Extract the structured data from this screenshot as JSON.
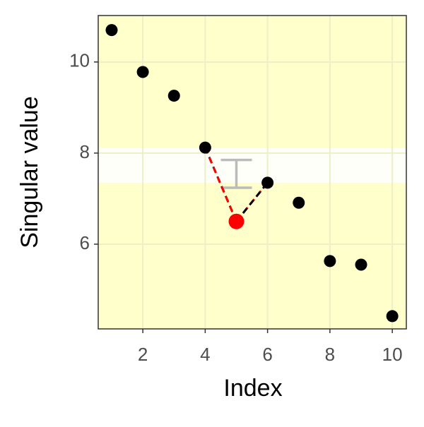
{
  "chart_data": {
    "type": "scatter",
    "x_label": "Index",
    "y_label": "Singular value",
    "x": [
      1,
      2,
      3,
      4,
      5,
      6,
      7,
      8,
      9,
      10
    ],
    "values": [
      10.7,
      9.78,
      9.26,
      8.12,
      6.5,
      7.35,
      6.91,
      5.63,
      5.55,
      4.42
    ],
    "point_colors": [
      "#000000",
      "#000000",
      "#000000",
      "#000000",
      "#ff0000",
      "#000000",
      "#000000",
      "#000000",
      "#000000",
      "#000000"
    ],
    "band": [
      7.35,
      8.12
    ],
    "errorbar": {
      "x": 5,
      "ymin": 7.24,
      "ymax": 7.85,
      "color": "#bbbbbb"
    },
    "background": "#ffffcc",
    "xlim": [
      0.57,
      10.45
    ],
    "ylim": [
      4.14,
      11.02
    ],
    "xticks": [
      2,
      4,
      6,
      8,
      10
    ],
    "yticks": [
      6,
      8,
      10
    ],
    "grid": true
  }
}
